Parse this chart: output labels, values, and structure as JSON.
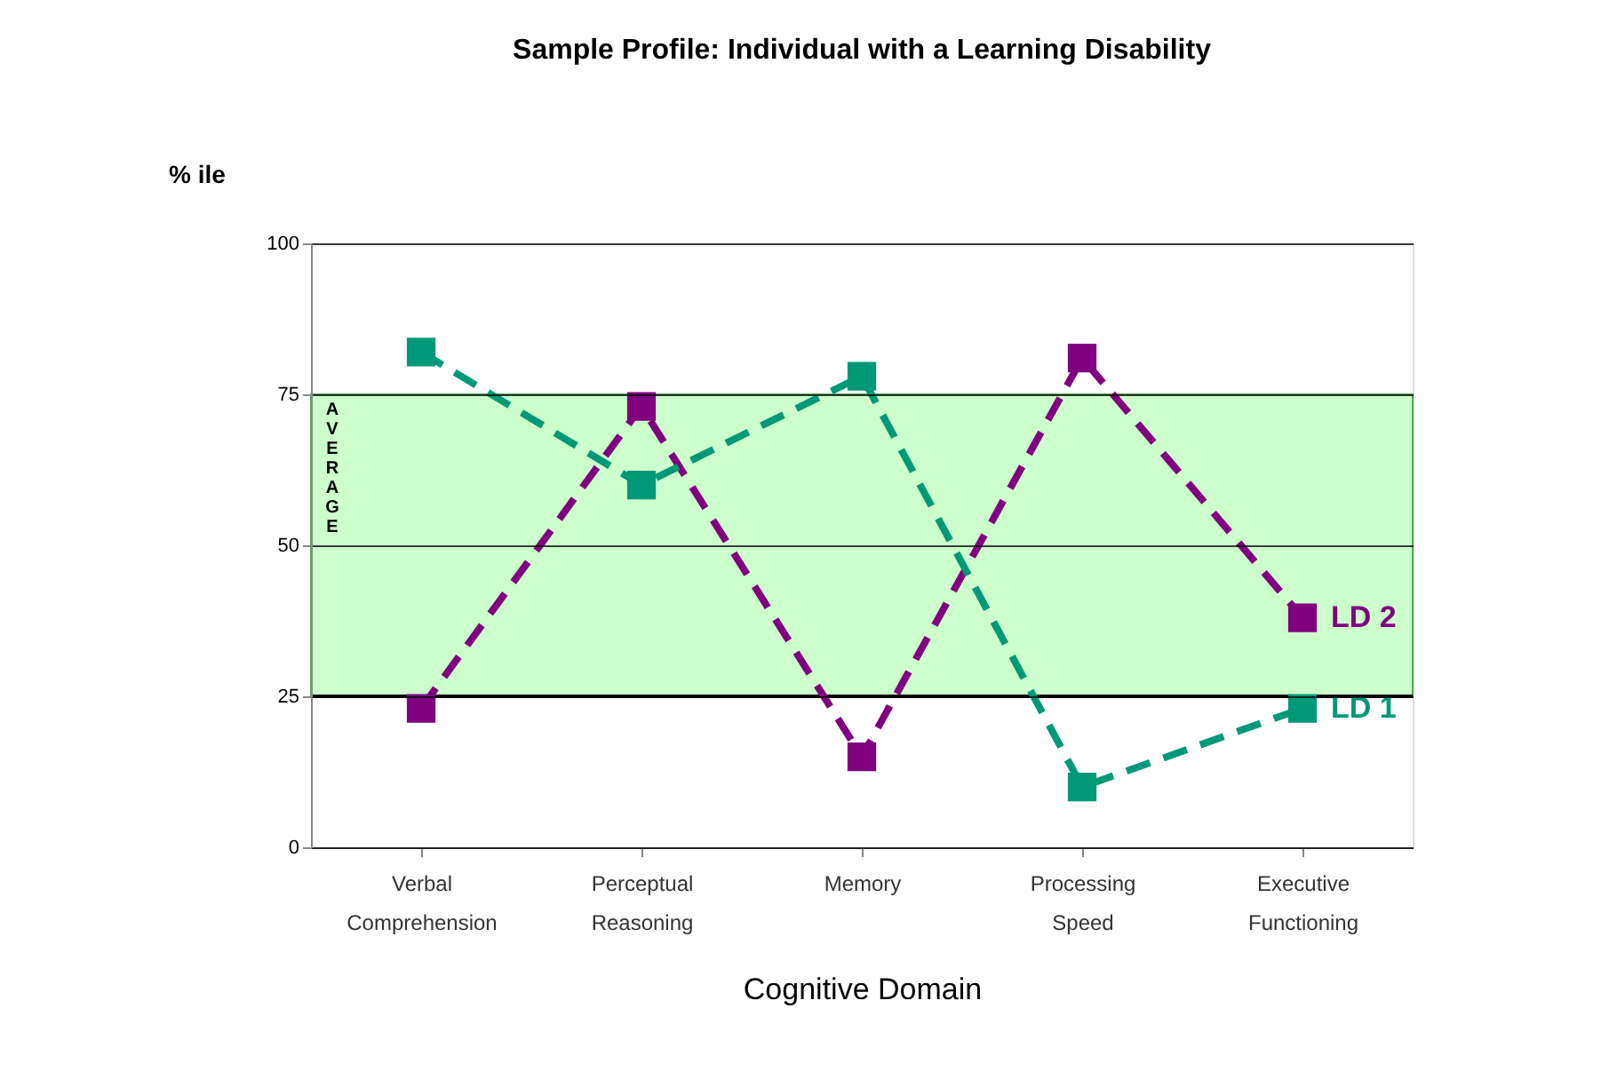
{
  "chart_data": {
    "type": "line",
    "title": "Sample Profile:  Individual with a Learning Disability",
    "ylabel": "% ile",
    "xlabel": "Cognitive Domain",
    "categories": [
      "Verbal Comprehension",
      "Perceptual Reasoning",
      "Memory",
      "Processing Speed",
      "Executive Functioning"
    ],
    "series": [
      {
        "name": "LD 2",
        "color": "#800080",
        "values": [
          23,
          73,
          15,
          81,
          38
        ]
      },
      {
        "name": "LD 1",
        "color": "#009977",
        "values": [
          82,
          60,
          78,
          10,
          23
        ]
      }
    ],
    "ylim": [
      0,
      100
    ],
    "yticks": [
      0,
      25,
      50,
      75,
      100
    ],
    "grid": "y",
    "legend": false,
    "marker": "square",
    "line_style": "dashed",
    "bands": [
      {
        "axis": "y",
        "from": 25,
        "to": 75,
        "label": "AVERAGE",
        "color": "#ccffcc"
      }
    ],
    "ref_lines": [
      {
        "axis": "y",
        "value": 25,
        "color": "#000000"
      }
    ]
  }
}
